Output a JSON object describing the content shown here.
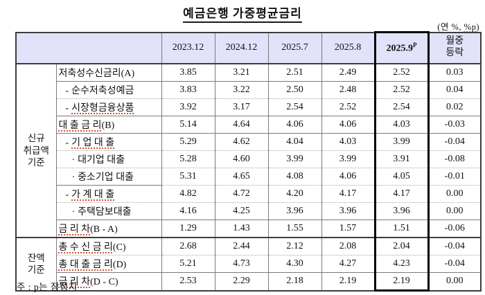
{
  "title": "예금은행 가중평균금리",
  "unit_note": {
    "pre": "(연 %, ",
    "highlight": "%p",
    "post": ")"
  },
  "footnote": "주 : p는 잠정치",
  "colors": {
    "header_bg": "#e2e2fa",
    "grid_dark": "#3c3c3c",
    "grid_solid": "#7a7a7a",
    "grid_dotted": "#a8a8a8",
    "highlight_box": "#000000",
    "spellcheck_underline": "#d4502a",
    "text": "#111111"
  },
  "table": {
    "columns": [
      {
        "label": "2023.12"
      },
      {
        "label": "2024.12"
      },
      {
        "label": "2025.7"
      },
      {
        "label": "2025.8"
      },
      {
        "label": "2025.9",
        "sup": "P",
        "bold": true
      },
      {
        "label": "월중\n등락"
      }
    ],
    "highlight_col": 4,
    "groups": [
      {
        "name": "group-new-transactions",
        "label": "신규\n취급액\n기준",
        "start": 0,
        "span": 10
      },
      {
        "name": "group-balance",
        "label": "잔액\n기준",
        "start": 10,
        "span": 3
      }
    ],
    "rows": [
      {
        "prefix": "",
        "text": "저축성수신금리",
        "suffix": "(A)",
        "underline": false,
        "indent": 0,
        "divider": "none",
        "values": [
          "3.85",
          "3.21",
          "2.51",
          "2.49",
          "2.52",
          "0.03"
        ]
      },
      {
        "prefix": "-",
        "text": "순수저축성예금",
        "suffix": "",
        "underline": false,
        "indent": 1,
        "divider": "solid",
        "values": [
          "3.83",
          "3.22",
          "2.50",
          "2.48",
          "2.52",
          "0.04"
        ]
      },
      {
        "prefix": "-",
        "text": "시장형금융상품",
        "suffix": "",
        "underline": true,
        "indent": 1,
        "divider": "dotted",
        "values": [
          "3.92",
          "3.17",
          "2.54",
          "2.52",
          "2.54",
          "0.02"
        ]
      },
      {
        "prefix": "",
        "text": "대 출 금 리",
        "suffix": "(B)",
        "underline": true,
        "indent": 0,
        "divider": "solid",
        "values": [
          "5.14",
          "4.64",
          "4.06",
          "4.06",
          "4.03",
          "-0.03"
        ]
      },
      {
        "prefix": "-",
        "text": "기 업 대 출",
        "suffix": "",
        "underline": true,
        "indent": 1,
        "divider": "solid",
        "values": [
          "5.29",
          "4.62",
          "4.04",
          "4.03",
          "3.99",
          "-0.04"
        ]
      },
      {
        "prefix": "·",
        "text": "대기업 대출",
        "suffix": "",
        "underline": false,
        "indent": 2,
        "divider": "dotted",
        "values": [
          "5.28",
          "4.60",
          "3.99",
          "3.99",
          "3.91",
          "-0.08"
        ]
      },
      {
        "prefix": "·",
        "text": "중소기업 대출",
        "suffix": "",
        "underline": false,
        "indent": 2,
        "divider": "dotted",
        "values": [
          "5.31",
          "4.65",
          "4.08",
          "4.06",
          "4.05",
          "-0.01"
        ]
      },
      {
        "prefix": "-",
        "text": "가 계 대 출",
        "suffix": "",
        "underline": true,
        "indent": 1,
        "divider": "dotted",
        "label_divider": "solid",
        "values": [
          "4.82",
          "4.72",
          "4.20",
          "4.17",
          "4.17",
          "0.00"
        ]
      },
      {
        "prefix": "·",
        "text": "주택담보대출",
        "suffix": "",
        "underline": false,
        "indent": 2,
        "divider": "dotted",
        "values": [
          "4.16",
          "4.25",
          "3.96",
          "3.96",
          "3.96",
          "0.00"
        ]
      },
      {
        "prefix": "",
        "text": "금 리 차",
        "suffix": "(B - A)",
        "underline": true,
        "indent": 0,
        "divider": "solid",
        "values": [
          "1.29",
          "1.43",
          "1.55",
          "1.57",
          "1.51",
          "-0.06"
        ]
      },
      {
        "prefix": "",
        "text": "총 수 신 금 리",
        "suffix": "(C)",
        "underline": true,
        "indent": 0,
        "divider": "group",
        "values": [
          "2.68",
          "2.44",
          "2.12",
          "2.08",
          "2.04",
          "-0.04"
        ]
      },
      {
        "prefix": "",
        "text": "총 대 출 금 리",
        "suffix": "(D)",
        "underline": true,
        "indent": 0,
        "divider": "dotted",
        "values": [
          "5.21",
          "4.73",
          "4.30",
          "4.27",
          "4.23",
          "-0.04"
        ]
      },
      {
        "prefix": "",
        "text": "금 리 차",
        "suffix": "(D - C)",
        "underline": true,
        "indent": 0,
        "divider": "solid",
        "values": [
          "2.53",
          "2.29",
          "2.18",
          "2.19",
          "2.19",
          "0.00"
        ]
      }
    ]
  }
}
